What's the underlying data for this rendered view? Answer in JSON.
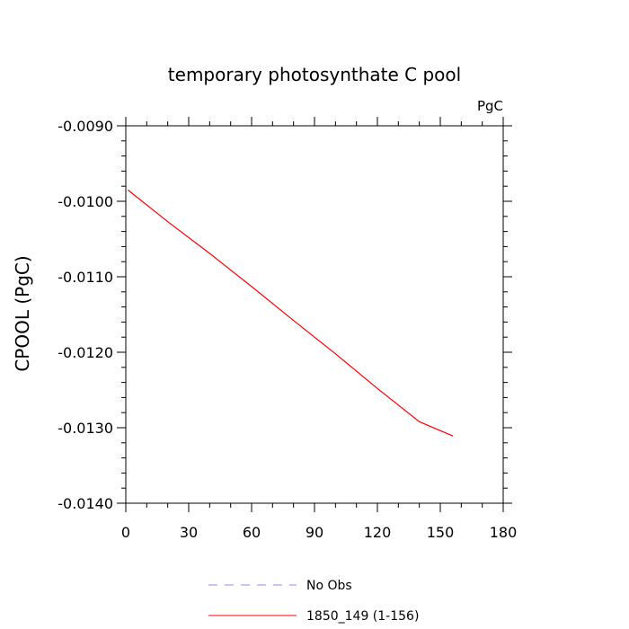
{
  "chart_data": {
    "type": "line",
    "title": "temporary photosynthate C pool",
    "units": "PgC",
    "xlabel": "",
    "ylabel": "CPOOL  (PgC)",
    "xlim": [
      0,
      180
    ],
    "ylim": [
      -0.014,
      -0.009
    ],
    "x_ticks": [
      0,
      30,
      60,
      90,
      120,
      150,
      180
    ],
    "x_tick_labels": [
      "0",
      "30",
      "60",
      "90",
      "120",
      "150",
      "180"
    ],
    "y_ticks": [
      -0.009,
      -0.01,
      -0.011,
      -0.012,
      -0.013,
      -0.014
    ],
    "y_tick_labels": [
      "-0.0090",
      "-0.0100",
      "-0.0110",
      "-0.0120",
      "-0.0130",
      "-0.0140"
    ],
    "grid": false,
    "legend_position": "bottom",
    "series": [
      {
        "name": "No Obs",
        "color": "#8888ff",
        "dash": "dashed",
        "x": [],
        "y": []
      },
      {
        "name": "1850_149 (1-156)",
        "color": "#ff0000",
        "dash": "solid",
        "x": [
          1,
          20,
          40,
          60,
          80,
          100,
          120,
          140,
          156
        ],
        "y": [
          -0.00985,
          -0.01027,
          -0.01069,
          -0.01113,
          -0.01158,
          -0.01202,
          -0.01248,
          -0.01292,
          -0.01311
        ]
      }
    ]
  }
}
